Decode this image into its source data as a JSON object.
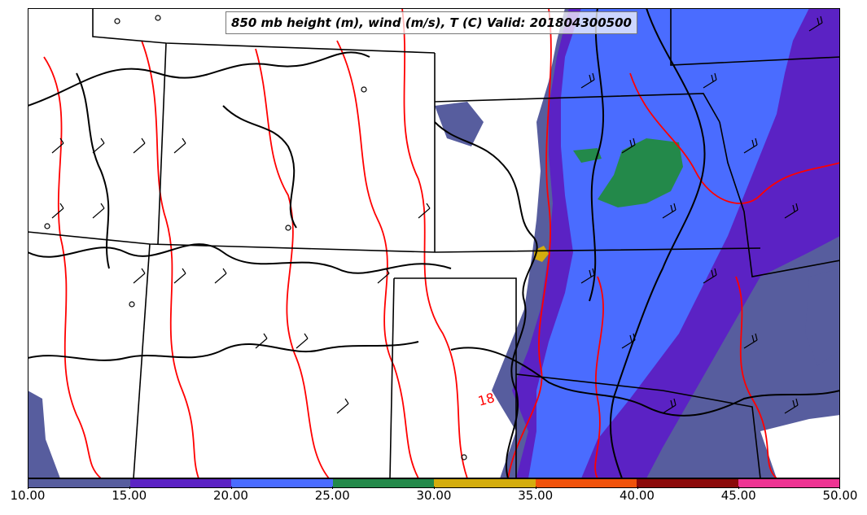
{
  "title": "850 mb height (m), wind (m/s), T (C) Valid: 201804300500",
  "contour_label": "18",
  "colorbar": {
    "ticks": [
      "10.00",
      "15.00",
      "20.00",
      "25.00",
      "30.00",
      "35.00",
      "40.00",
      "45.00",
      "50.00"
    ],
    "colors": [
      "#575d9e",
      "#5b22c4",
      "#4a6cff",
      "#23894a",
      "#d4ad0e",
      "#f0520b",
      "#8b0a0a",
      "#ee3493"
    ]
  },
  "colors": {
    "temperature_contour": "#ff0000",
    "height_contour": "#000000",
    "state_boundary": "#000000",
    "wind_barb": "#000000"
  }
}
